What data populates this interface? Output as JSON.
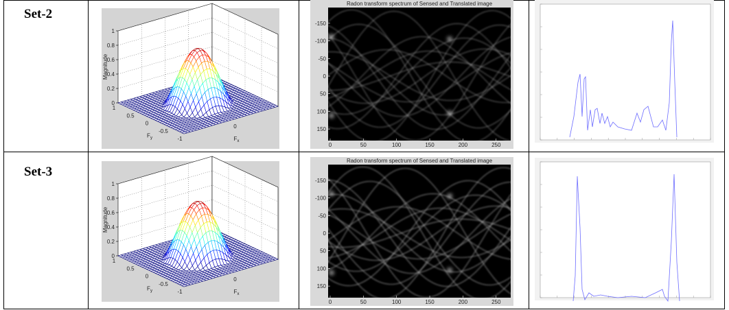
{
  "rows": [
    {
      "label": "Set-2",
      "surface": {
        "zlabel": "Magnitude",
        "zticks": [
          0,
          0.2,
          0.4,
          0.6,
          0.8,
          1
        ],
        "yticks": [
          1,
          0.5,
          0,
          -0.5,
          -1
        ],
        "xticks": [
          0
        ],
        "ylabel": {
          "base": "F",
          "sub": "y"
        },
        "xlabel": {
          "base": "F",
          "sub": "x"
        }
      },
      "radon": {
        "title": "Radon transform spectrum of Sensed and Translated image",
        "yticks": [
          -150,
          -100,
          -50,
          0,
          50,
          100,
          150
        ],
        "xticks": [
          0,
          50,
          100,
          150,
          200,
          250
        ]
      }
    },
    {
      "label": "Set-3",
      "surface": {
        "zlabel": "Magnitude",
        "zticks": [
          0,
          0.2,
          0.4,
          0.6,
          0.8,
          1
        ],
        "yticks": [
          1,
          0.5,
          0,
          -0.5,
          -1
        ],
        "xticks": [
          0
        ],
        "ylabel": {
          "base": "F",
          "sub": "y"
        },
        "xlabel": {
          "base": "F",
          "sub": "x"
        }
      },
      "radon": {
        "title": "Radon transform spectrum of Sensed and Translated image",
        "yticks": [
          -150,
          -100,
          -50,
          0,
          50,
          100,
          150
        ],
        "xticks": [
          0,
          50,
          100,
          150,
          200,
          250
        ]
      }
    }
  ]
}
